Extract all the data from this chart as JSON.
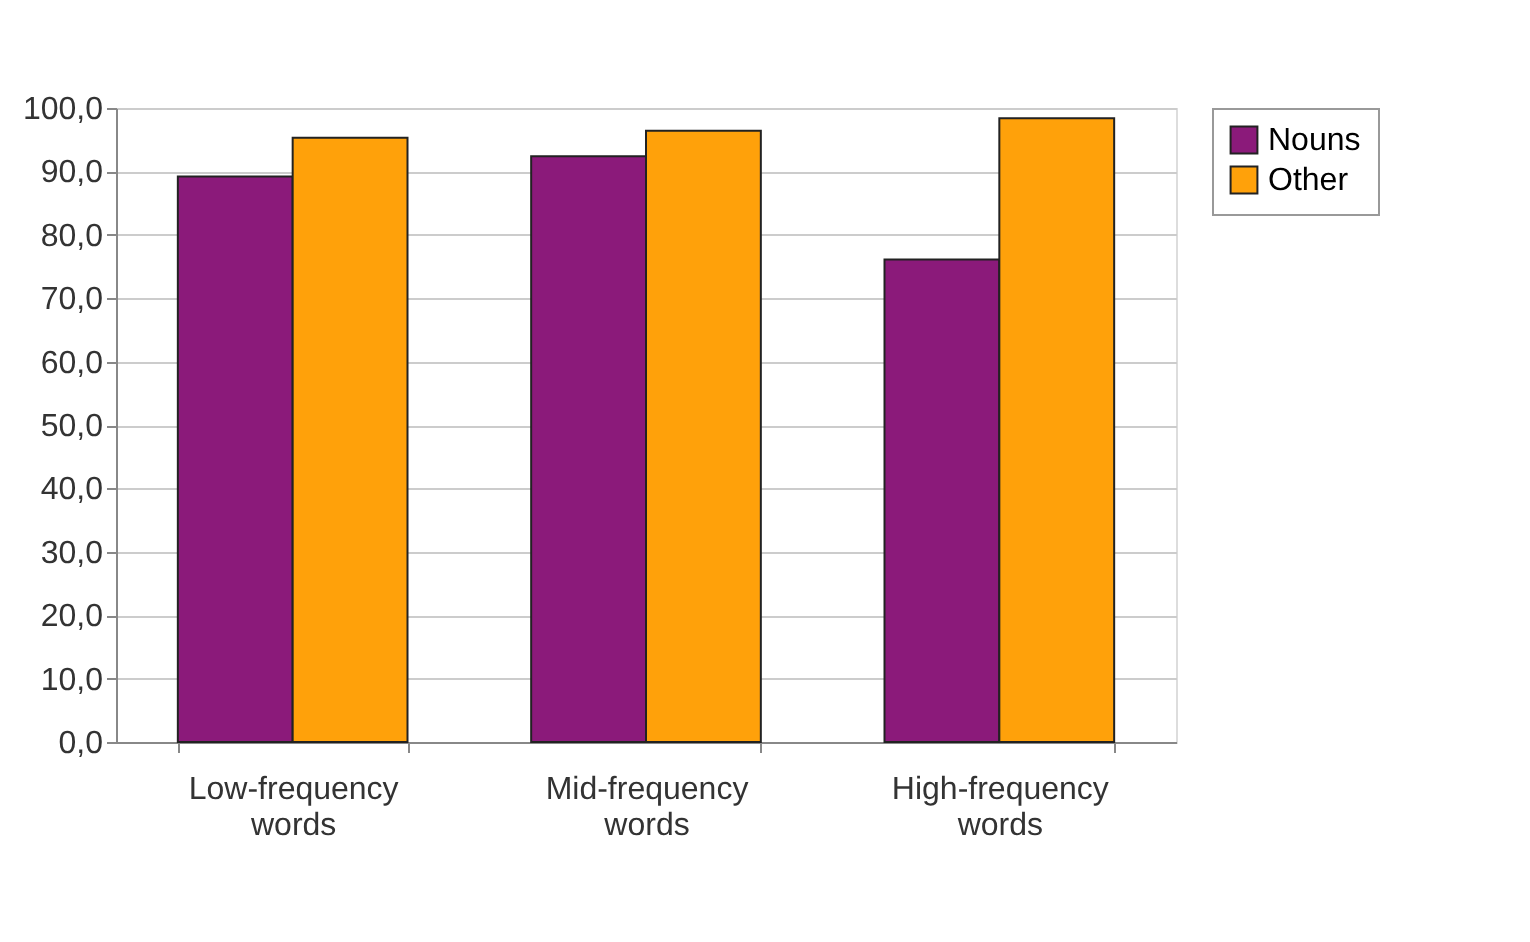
{
  "chart_data": {
    "type": "bar",
    "categories": [
      "Low-frequency words",
      "Mid-frequency words",
      "High-frequency words"
    ],
    "series": [
      {
        "name": "Nouns",
        "color": "#8b1a7a",
        "values": [
          89.2,
          92.4,
          76.1
        ]
      },
      {
        "name": "Other",
        "color": "#ffa10a",
        "values": [
          95.3,
          96.4,
          98.4
        ]
      }
    ],
    "ylim": [
      0,
      100
    ],
    "yticks": [
      {
        "value": 0,
        "label": "0,0"
      },
      {
        "value": 10,
        "label": "10,0"
      },
      {
        "value": 20,
        "label": "20,0"
      },
      {
        "value": 30,
        "label": "30,0"
      },
      {
        "value": 40,
        "label": "40,0"
      },
      {
        "value": 50,
        "label": "50,0"
      },
      {
        "value": 60,
        "label": "60,0"
      },
      {
        "value": 70,
        "label": "70,0"
      },
      {
        "value": 80,
        "label": "80,0"
      },
      {
        "value": 90,
        "label": "90,0"
      },
      {
        "value": 100,
        "label": "100,0"
      }
    ],
    "grid": "y",
    "legend": "right"
  }
}
